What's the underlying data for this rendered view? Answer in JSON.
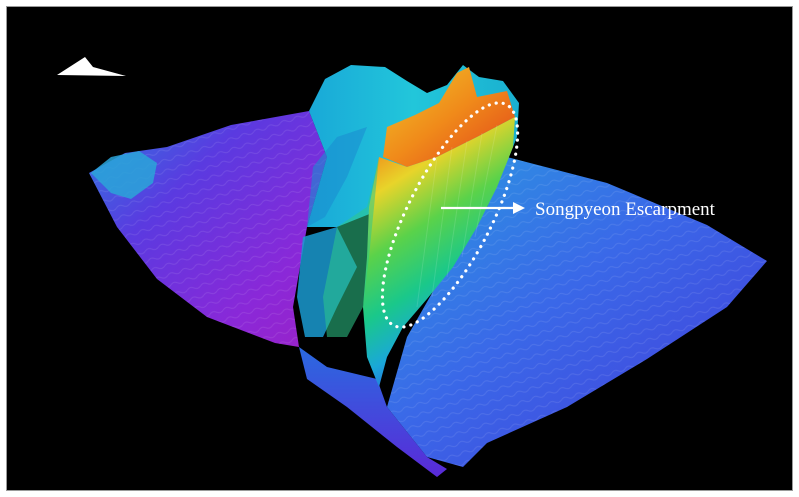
{
  "annotation": {
    "label": "Songpyeon Escarpment",
    "label_color": "#ffffff",
    "highlight_style": "dotted-ellipse",
    "highlight_color": "#ffffff"
  },
  "north_arrow": {
    "icon": "north-arrow-icon",
    "color": "#ffffff"
  },
  "colors": {
    "background": "#000000",
    "frame_border": "#9a9a9a",
    "deep": "#7a2ad8",
    "mid_deep": "#3a56e0",
    "shallow": "#1ab8d8",
    "mid": "#2ecc55",
    "upper": "#e6d42a",
    "high": "#f07a1a",
    "peak": "#e82a2a"
  }
}
